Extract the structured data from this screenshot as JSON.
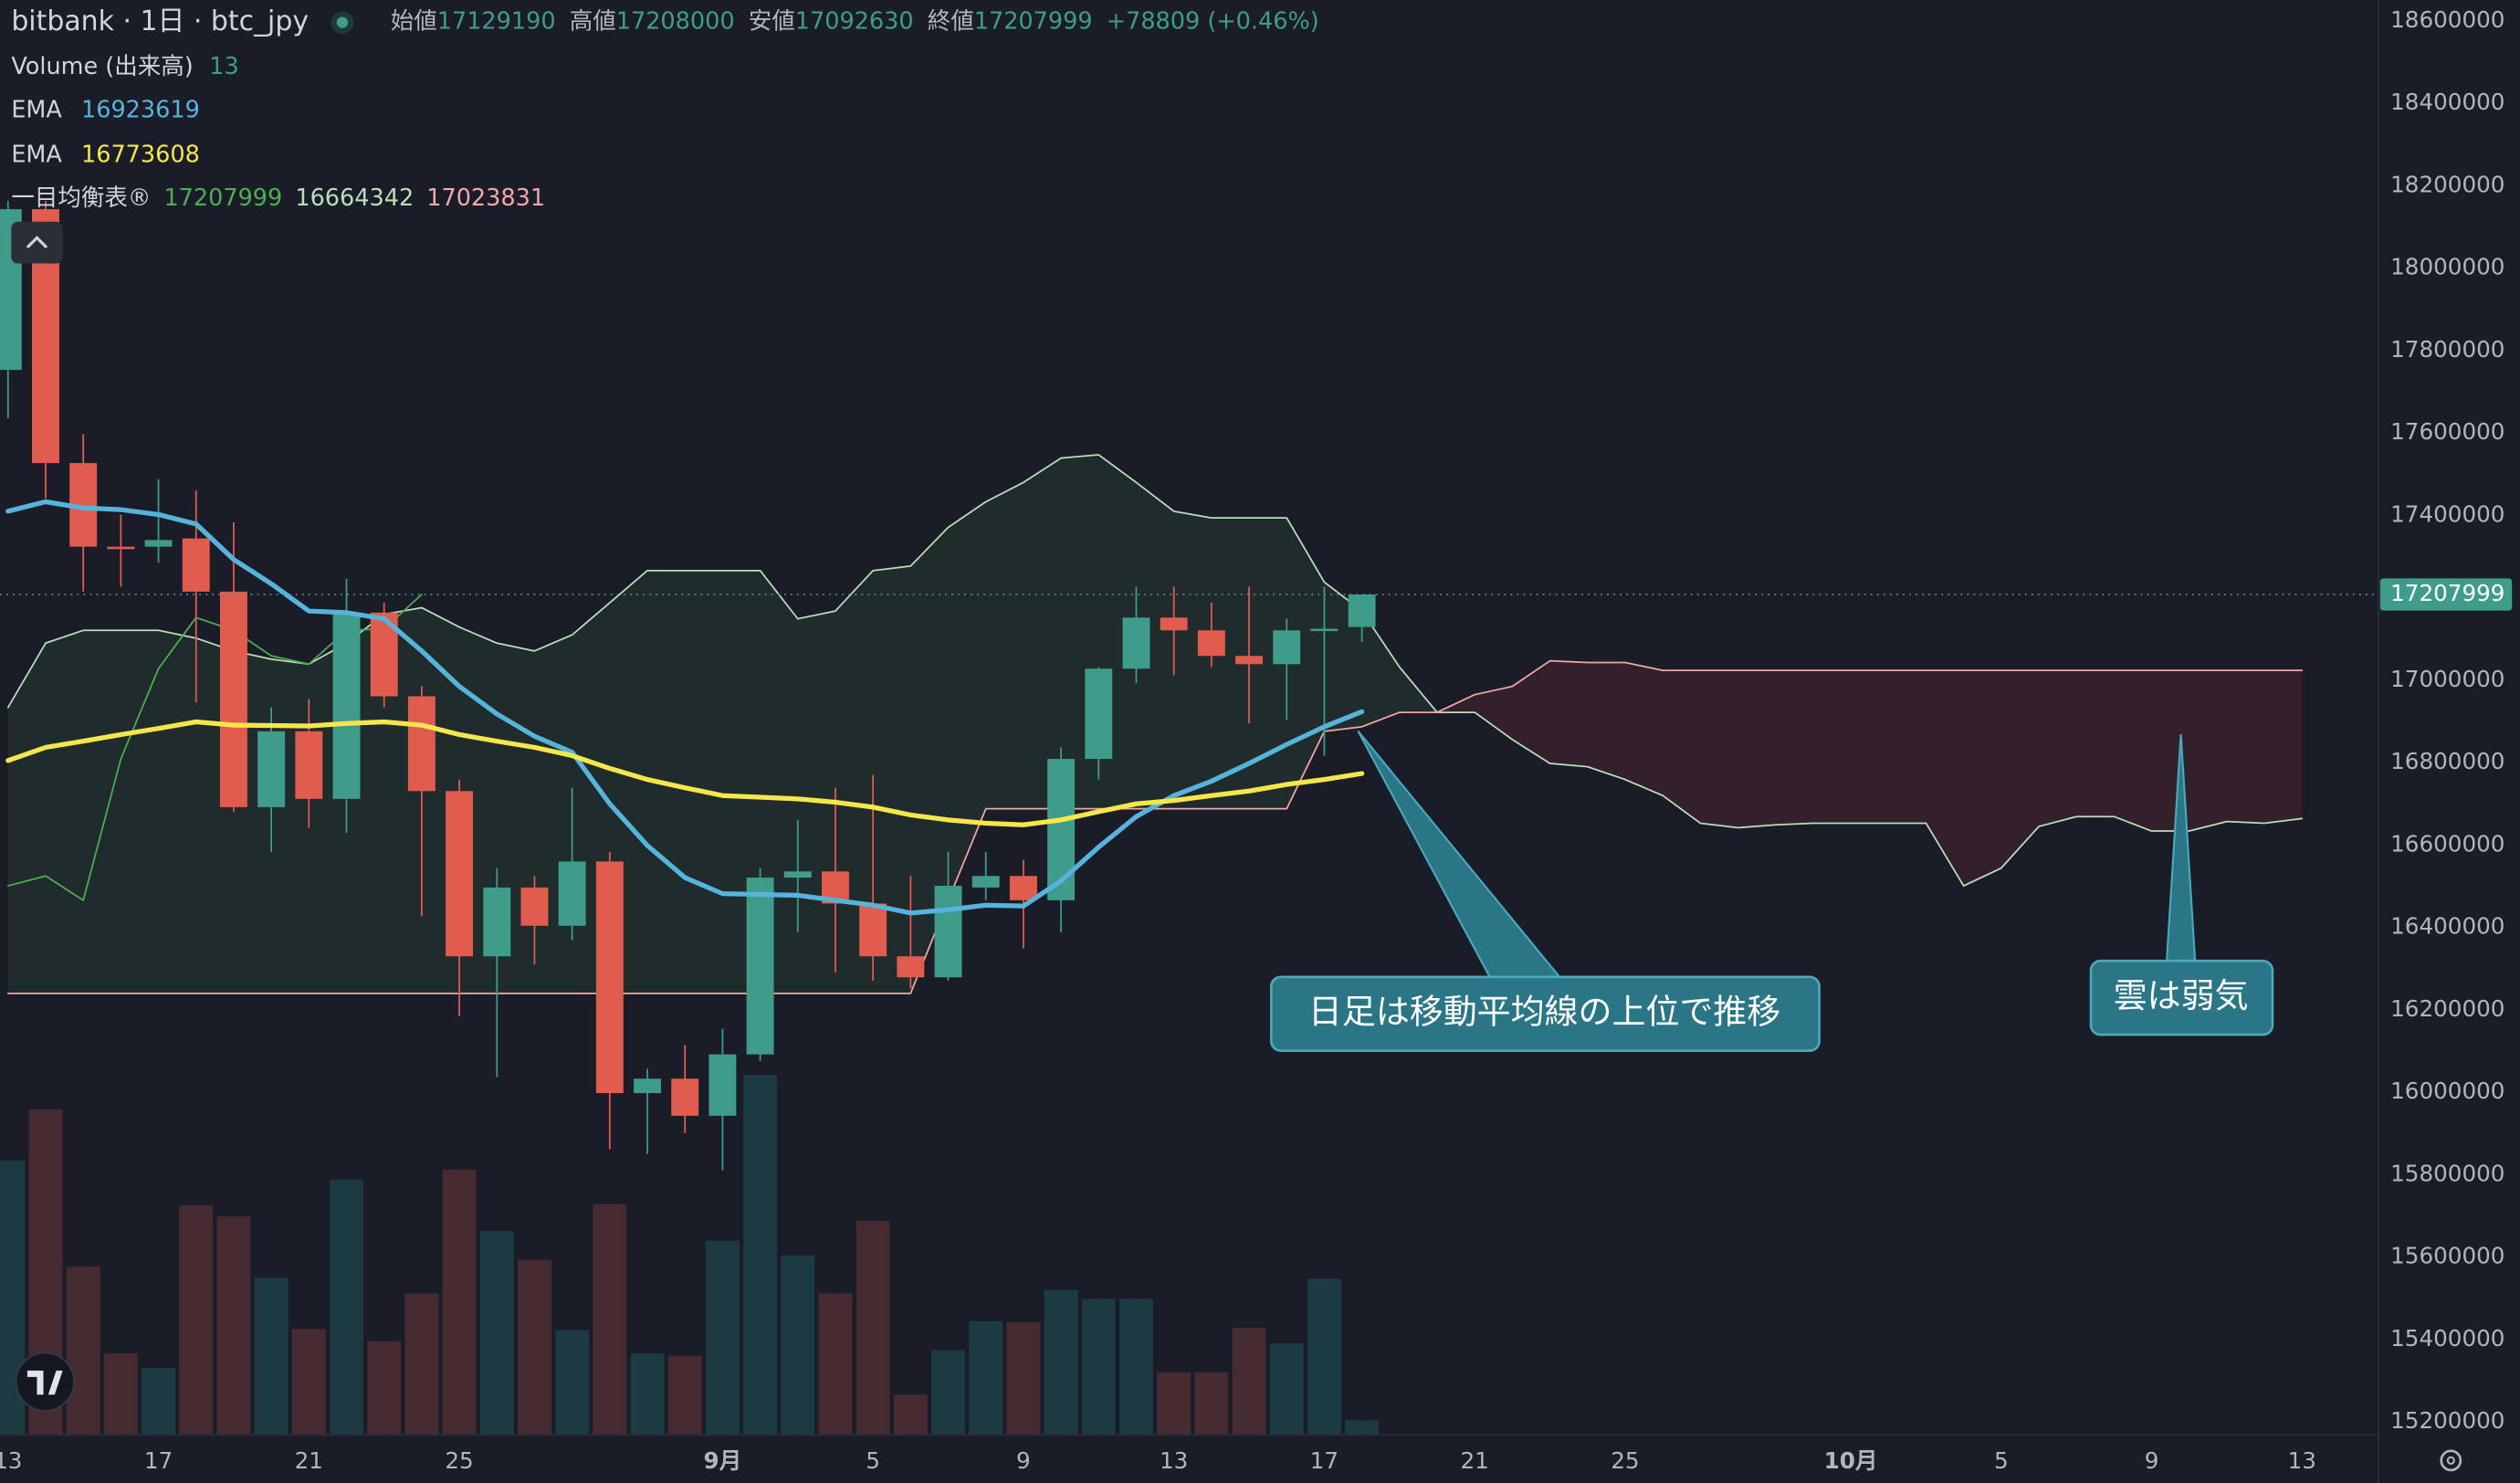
{
  "chart_data": {
    "type": "candlestick",
    "title": "bitbank · 1日 · btc_jpy",
    "ohlc_labels": [
      "始値",
      "高値",
      "安値",
      "終値"
    ],
    "change": "+78809 (+0.46%)",
    "categories": [
      "13",
      null,
      null,
      null,
      "17",
      null,
      null,
      null,
      "21",
      null,
      null,
      null,
      "25",
      null,
      null,
      null,
      null,
      null,
      null,
      "9月",
      null,
      null,
      null,
      "5",
      null,
      null,
      null,
      "9",
      null,
      null,
      null,
      "13",
      null,
      null,
      null,
      "17",
      null,
      null,
      null,
      "21",
      null,
      null,
      null,
      "25",
      null,
      null,
      null,
      null,
      null,
      "10月",
      null,
      null,
      null,
      "5",
      null,
      null,
      null,
      "9",
      null,
      null,
      null,
      "13"
    ],
    "open": [
      17753000,
      18143000,
      17527000,
      17324000,
      17324000,
      17344000,
      17215000,
      16692000,
      16876000,
      16712000,
      17164000,
      16961000,
      16731000,
      16330000,
      16497000,
      16404000,
      16560000,
      15998000,
      16033000,
      15943000,
      16092000,
      16521000,
      16536000,
      16458000,
      16330000,
      16279000,
      16497000,
      16525000,
      16466000,
      16809000,
      17028000,
      17152000,
      17121000,
      17059000,
      17039000,
      17121000,
      17129190,
      null,
      null,
      null,
      null,
      null,
      null,
      null,
      null,
      null,
      null,
      null,
      null,
      null,
      null,
      null,
      null,
      null,
      null,
      null,
      null,
      null,
      null,
      null,
      null,
      null
    ],
    "high": [
      18163000,
      18163000,
      17597000,
      17402000,
      17488000,
      17461000,
      17383000,
      16934000,
      16954000,
      17246000,
      17188000,
      16985000,
      16759000,
      16544000,
      16525000,
      16739000,
      16583000,
      16057000,
      16115000,
      16154000,
      16544000,
      16661000,
      16739000,
      16770000,
      16525000,
      16583000,
      16583000,
      16564000,
      16837000,
      17032000,
      17227000,
      17227000,
      17188000,
      17227000,
      17149000,
      17227000,
      17208000,
      null,
      null,
      null,
      null,
      null,
      null,
      null,
      null,
      null,
      null,
      null,
      null,
      null,
      null,
      null,
      null,
      null,
      null,
      null,
      null,
      null,
      null,
      null,
      null,
      null
    ],
    "low": [
      17636000,
      17441000,
      17215000,
      17227000,
      17285000,
      16946000,
      16681000,
      16583000,
      16642000,
      16630000,
      16934000,
      16427000,
      16185000,
      16037000,
      16310000,
      16369000,
      15862000,
      15850000,
      15901000,
      15811000,
      16076000,
      16388000,
      16291000,
      16271000,
      16252000,
      16271000,
      16466000,
      16349000,
      16388000,
      16759000,
      16993000,
      17012000,
      17032000,
      16895000,
      16903000,
      16817000,
      17092630,
      null,
      null,
      null,
      null,
      null,
      null,
      null,
      null,
      null,
      null,
      null,
      null,
      null,
      null,
      null,
      null,
      null,
      null,
      null,
      null,
      null,
      null,
      null,
      null,
      null
    ],
    "close": [
      18143000,
      17527000,
      17324000,
      17320000,
      17340000,
      17215000,
      16692000,
      16876000,
      16712000,
      17164000,
      16961000,
      16731000,
      16330000,
      16497000,
      16404000,
      16560000,
      15998000,
      16033000,
      15943000,
      16092000,
      16521000,
      16536000,
      16458000,
      16330000,
      16279000,
      16501000,
      16525000,
      16466000,
      16809000,
      17028000,
      17152000,
      17121000,
      17059000,
      17039000,
      17121000,
      17125000,
      17207999,
      null,
      null,
      null,
      null,
      null,
      null,
      null,
      null,
      null,
      null,
      null,
      null,
      null,
      null,
      null,
      null,
      null,
      null,
      null,
      null,
      null,
      null,
      null,
      null,
      null
    ],
    "up_color": "#3f9c8a",
    "down_color": "#e05c4e",
    "volume": {
      "name": "Volume (出来高)",
      "up_color": "#1b3a41",
      "down_color": "#452a30",
      "values": [
        246,
        292,
        151,
        73,
        60,
        206,
        196,
        141,
        95,
        229,
        84,
        127,
        238,
        183,
        157,
        94,
        207,
        73,
        71,
        174,
        323,
        161,
        127,
        192,
        36,
        76,
        102,
        101,
        130,
        122,
        122,
        56,
        56,
        96,
        82,
        140,
        13,
        null,
        null,
        null,
        null,
        null,
        null,
        null,
        null,
        null,
        null,
        null,
        null,
        null,
        null,
        null,
        null,
        null,
        null,
        null,
        null,
        null,
        null,
        null,
        null,
        null
      ]
    },
    "series": [
      {
        "name": "EMA",
        "color": "#56b4dc",
        "values": [
          17410000,
          17433000,
          17418000,
          17414000,
          17402000,
          17379000,
          17293000,
          17234000,
          17168000,
          17164000,
          17149000,
          17071000,
          16985000,
          16918000,
          16864000,
          16825000,
          16700000,
          16599000,
          16521000,
          16482000,
          16480000,
          16478000,
          16466000,
          16454000,
          16435000,
          16443000,
          16454000,
          16452000,
          16513000,
          16595000,
          16669000,
          16720000,
          16755000,
          16798000,
          16844000,
          16887000,
          16923619,
          null,
          null,
          null,
          null,
          null,
          null,
          null,
          null,
          null,
          null,
          null,
          null,
          null,
          null,
          null,
          null,
          null,
          null,
          null,
          null,
          null,
          null,
          null,
          null,
          null
        ]
      },
      {
        "name": "EMA",
        "color": "#f5e64a",
        "values": [
          16805000,
          16837000,
          16852000,
          16868000,
          16883000,
          16899000,
          16891000,
          16890000,
          16889000,
          16895000,
          16899000,
          16891000,
          16868000,
          16852000,
          16837000,
          16817000,
          16786000,
          16759000,
          16739000,
          16720000,
          16716000,
          16712000,
          16704000,
          16692000,
          16673000,
          16661000,
          16653000,
          16649000,
          16661000,
          16681000,
          16700000,
          16708000,
          16720000,
          16731000,
          16747000,
          16759000,
          16773608,
          null,
          null,
          null,
          null,
          null,
          null,
          null,
          null,
          null,
          null,
          null,
          null,
          null,
          null,
          null,
          null,
          null,
          null,
          null,
          null,
          null,
          null,
          null,
          null,
          null
        ]
      }
    ],
    "ichimoku": {
      "name": "一目均衡表®",
      "cloud_up": "rgba(76,175,80,0.10)",
      "cloud_down": "rgba(242,54,69,0.12)",
      "lagging": {
        "color": "#4caf50",
        "values": [
          16501000,
          16525000,
          16466000,
          16809000,
          17028000,
          17152000,
          17121000,
          17059000,
          17039000,
          17121000,
          17125000,
          17207999,
          null,
          null,
          null,
          null,
          null,
          null,
          null,
          null,
          null,
          null,
          null,
          null,
          null,
          null,
          null,
          null,
          null,
          null,
          null,
          null,
          null,
          null,
          null,
          null,
          null,
          null,
          null,
          null,
          null,
          null,
          null,
          null,
          null,
          null,
          null,
          null,
          null,
          null,
          null,
          null,
          null,
          null,
          null,
          null,
          null,
          null,
          null,
          null,
          null,
          null
        ]
      },
      "span_a": {
        "color": "#b9dfba",
        "values": [
          16934000,
          17090000,
          17121000,
          17121000,
          17121000,
          17102000,
          17071000,
          17051000,
          17039000,
          17090000,
          17160000,
          17176000,
          17129000,
          17090000,
          17071000,
          17110000,
          17188000,
          17266000,
          17266000,
          17266000,
          17266000,
          17149000,
          17168000,
          17266000,
          17277000,
          17371000,
          17433000,
          17480000,
          17539000,
          17547000,
          17480000,
          17410000,
          17394000,
          17394000,
          17394000,
          17238000,
          17168000,
          17032000,
          16922000,
          16922000,
          16856000,
          16798000,
          16790000,
          16759000,
          16720000,
          16653000,
          16642000,
          16649000,
          16653000,
          16653000,
          16653000,
          16653000,
          16501000,
          16544000,
          16645000,
          16669000,
          16669000,
          16634000,
          16634000,
          16657000,
          16653000,
          16664342
        ]
      },
      "span_b": {
        "color": "#f2a7a7",
        "values": [
          16240000,
          16240000,
          16240000,
          16240000,
          16240000,
          16240000,
          16240000,
          16240000,
          16240000,
          16240000,
          16240000,
          16240000,
          16240000,
          16240000,
          16240000,
          16240000,
          16240000,
          16240000,
          16240000,
          16240000,
          16240000,
          16240000,
          16240000,
          16240000,
          16240000,
          16466000,
          16688000,
          16688000,
          16688000,
          16688000,
          16688000,
          16688000,
          16688000,
          16688000,
          16688000,
          16876000,
          16887000,
          16922000,
          16922000,
          16965000,
          16985000,
          17047000,
          17043000,
          17043000,
          17023831,
          17023831,
          17023831,
          17023831,
          17023831,
          17023831,
          17023831,
          17023831,
          17023831,
          17023831,
          17023831,
          17023831,
          17023831,
          17023831,
          17023831,
          17023831,
          17023831,
          17023831
        ]
      }
    },
    "ylim": [
      15200000,
      18600000
    ],
    "yticks": [
      15200000,
      15400000,
      15600000,
      15800000,
      16000000,
      16200000,
      16400000,
      16600000,
      16800000,
      17000000,
      17200000,
      17400000,
      17600000,
      17800000,
      18000000,
      18200000,
      18400000,
      18600000
    ],
    "grid": false,
    "annotations": [
      {
        "text": "日足は移動平均線の上位で推移"
      },
      {
        "text": "雲は弱気"
      }
    ]
  }
}
